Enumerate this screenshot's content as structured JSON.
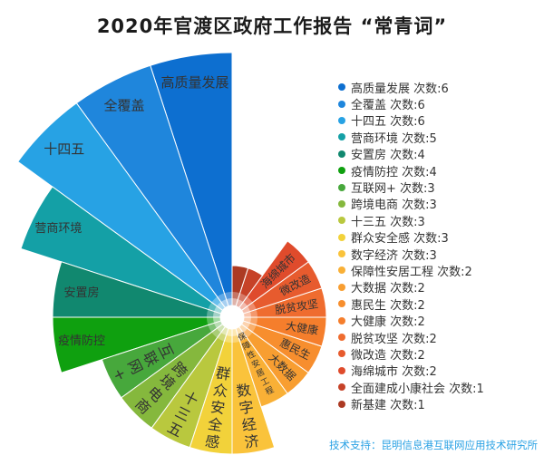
{
  "title": "2020年官渡区政府工作报告 “常青词”",
  "footer": {
    "text": "技术支持：昆明信息港互联网应用技术研究所",
    "color": "#2ba2e4"
  },
  "legend": {
    "position": "right",
    "count_prefix": "次数:"
  },
  "chart_data": {
    "type": "pie",
    "subtype": "nightingale-rose",
    "title": "2020年官渡区政府工作报告 “常青词”",
    "unit_label": "次数",
    "start_angle_deg": 90,
    "direction": "counterclockwise",
    "slice_angle_deg": 18,
    "center": [
      256,
      350
    ],
    "inner_radius": 12,
    "radius_base": 10,
    "radius_per_count": 47,
    "label_color": "#333333",
    "items": [
      {
        "name": "高质量发展",
        "count": 6,
        "color": "#0d6fd0",
        "label_mode": "h"
      },
      {
        "name": "全覆盖",
        "count": 6,
        "color": "#1f86dc",
        "label_mode": "h"
      },
      {
        "name": "十四五",
        "count": 6,
        "color": "#27a2e4",
        "label_mode": "h"
      },
      {
        "name": "营商环境",
        "count": 5,
        "color": "#14a0a6",
        "label_mode": "h"
      },
      {
        "name": "安置房",
        "count": 4,
        "color": "#11886f",
        "label_mode": "h"
      },
      {
        "name": "疫情防控",
        "count": 4,
        "color": "#0fa00f",
        "label_mode": "h"
      },
      {
        "name": "互联网+",
        "count": 3,
        "color": "#47a83c",
        "label_mode": "v"
      },
      {
        "name": "跨境电商",
        "count": 3,
        "color": "#85b83d",
        "label_mode": "v"
      },
      {
        "name": "十三五",
        "count": 3,
        "color": "#b9c83e",
        "label_mode": "v"
      },
      {
        "name": "群众安全感",
        "count": 3,
        "color": "#f2d23a",
        "label_mode": "v"
      },
      {
        "name": "数字经济",
        "count": 3,
        "color": "#fac33b",
        "label_mode": "v"
      },
      {
        "name": "保障性安居工程",
        "count": 2,
        "color": "#f9b036",
        "label_mode": "v"
      },
      {
        "name": "大数据",
        "count": 2,
        "color": "#f89e31",
        "label_mode": "r"
      },
      {
        "name": "惠民生",
        "count": 2,
        "color": "#f78e2e",
        "label_mode": "r"
      },
      {
        "name": "大健康",
        "count": 2,
        "color": "#f57e2c",
        "label_mode": "r"
      },
      {
        "name": "脱贫攻坚",
        "count": 2,
        "color": "#ef6c2f",
        "label_mode": "r"
      },
      {
        "name": "微改造",
        "count": 2,
        "color": "#e75b2e",
        "label_mode": "r"
      },
      {
        "name": "海绵城市",
        "count": 2,
        "color": "#df4b2c",
        "label_mode": "r"
      },
      {
        "name": "全面建成小康社会",
        "count": 1,
        "color": "#c64228",
        "label_mode": "none"
      },
      {
        "name": "新基建",
        "count": 1,
        "color": "#ac3a23",
        "label_mode": "none"
      }
    ]
  }
}
